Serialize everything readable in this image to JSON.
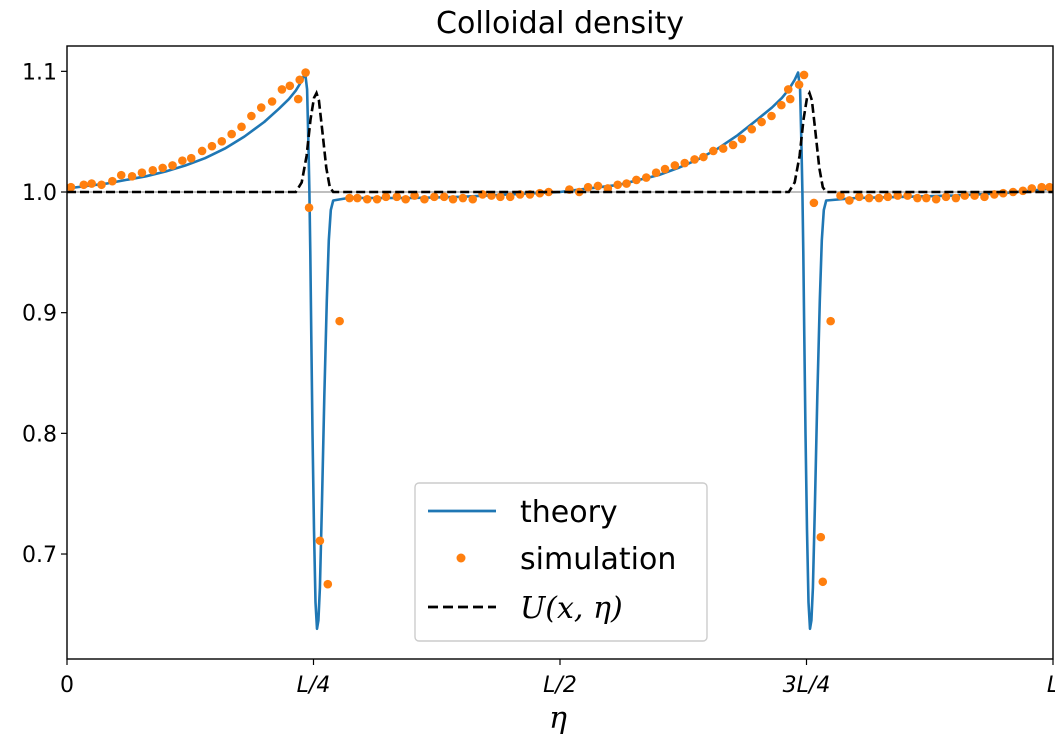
{
  "chart_data": {
    "type": "line",
    "title": "Colloidal density",
    "xlabel": "η",
    "ylabel": "",
    "xlim": [
      0,
      1
    ],
    "ylim": [
      0.613,
      1.121
    ],
    "x_ticks": [
      {
        "value": 0,
        "label": "0"
      },
      {
        "value": 0.25,
        "label": "L/4"
      },
      {
        "value": 0.5,
        "label": "L/2"
      },
      {
        "value": 0.75,
        "label": "3L/4"
      },
      {
        "value": 1.0,
        "label": "L"
      }
    ],
    "y_ticks": [
      {
        "value": 0.7,
        "label": "0.7"
      },
      {
        "value": 0.8,
        "label": "0.8"
      },
      {
        "value": 0.9,
        "label": "0.9"
      },
      {
        "value": 1.0,
        "label": "1.0"
      },
      {
        "value": 1.1,
        "label": "1.1"
      }
    ],
    "reference_line": {
      "y": 1.0,
      "color": "#aaaaaa"
    },
    "grid": false,
    "legend_position": "bottom-center",
    "series": [
      {
        "name": "theory",
        "style": "solid-line",
        "color": "#1f77b4",
        "points": [
          [
            0.0,
            1.003
          ],
          [
            0.02,
            1.005
          ],
          [
            0.04,
            1.007
          ],
          [
            0.06,
            1.01
          ],
          [
            0.08,
            1.013
          ],
          [
            0.1,
            1.017
          ],
          [
            0.12,
            1.022
          ],
          [
            0.14,
            1.028
          ],
          [
            0.16,
            1.036
          ],
          [
            0.18,
            1.046
          ],
          [
            0.2,
            1.058
          ],
          [
            0.215,
            1.069
          ],
          [
            0.225,
            1.077
          ],
          [
            0.232,
            1.084
          ],
          [
            0.238,
            1.092
          ],
          [
            0.2415,
            1.099
          ],
          [
            0.2435,
            1.085
          ],
          [
            0.2448,
            1.04
          ],
          [
            0.2458,
            1.0
          ],
          [
            0.2468,
            0.95
          ],
          [
            0.2478,
            0.88
          ],
          [
            0.249,
            0.8
          ],
          [
            0.2505,
            0.72
          ],
          [
            0.252,
            0.66
          ],
          [
            0.2535,
            0.638
          ],
          [
            0.255,
            0.645
          ],
          [
            0.2565,
            0.672
          ],
          [
            0.2585,
            0.74
          ],
          [
            0.261,
            0.83
          ],
          [
            0.2635,
            0.91
          ],
          [
            0.2655,
            0.96
          ],
          [
            0.2675,
            0.985
          ],
          [
            0.27,
            0.993
          ],
          [
            0.285,
            0.995
          ],
          [
            0.3,
            0.995
          ],
          [
            0.35,
            0.995
          ],
          [
            0.4,
            0.996
          ],
          [
            0.45,
            0.998
          ],
          [
            0.5,
            1.0
          ],
          [
            0.52,
            1.002
          ],
          [
            0.54,
            1.004
          ],
          [
            0.56,
            1.006
          ],
          [
            0.58,
            1.01
          ],
          [
            0.6,
            1.014
          ],
          [
            0.62,
            1.02
          ],
          [
            0.64,
            1.027
          ],
          [
            0.66,
            1.036
          ],
          [
            0.68,
            1.047
          ],
          [
            0.7,
            1.06
          ],
          [
            0.715,
            1.07
          ],
          [
            0.725,
            1.078
          ],
          [
            0.732,
            1.085
          ],
          [
            0.738,
            1.093
          ],
          [
            0.7415,
            1.099
          ],
          [
            0.7435,
            1.085
          ],
          [
            0.7448,
            1.04
          ],
          [
            0.7458,
            1.0
          ],
          [
            0.7468,
            0.95
          ],
          [
            0.7478,
            0.88
          ],
          [
            0.749,
            0.8
          ],
          [
            0.7505,
            0.72
          ],
          [
            0.752,
            0.66
          ],
          [
            0.7535,
            0.638
          ],
          [
            0.755,
            0.645
          ],
          [
            0.7565,
            0.672
          ],
          [
            0.7585,
            0.74
          ],
          [
            0.761,
            0.83
          ],
          [
            0.7635,
            0.91
          ],
          [
            0.7655,
            0.96
          ],
          [
            0.7675,
            0.985
          ],
          [
            0.77,
            0.993
          ],
          [
            0.8,
            0.995
          ],
          [
            0.85,
            0.996
          ],
          [
            0.9,
            0.997
          ],
          [
            0.95,
            0.999
          ],
          [
            1.0,
            1.003
          ]
        ]
      },
      {
        "name": "simulation",
        "style": "markers",
        "color": "#ff7f0e",
        "x": [
          0.004,
          0.017,
          0.025,
          0.035,
          0.046,
          0.055,
          0.066,
          0.076,
          0.087,
          0.097,
          0.107,
          0.117,
          0.126,
          0.137,
          0.147,
          0.157,
          0.167,
          0.177,
          0.187,
          0.197,
          0.208,
          0.218,
          0.226,
          0.236,
          0.242,
          0.2345,
          0.2455,
          0.2565,
          0.2645,
          0.2765,
          0.2865,
          0.2945,
          0.3045,
          0.3145,
          0.3235,
          0.3345,
          0.3435,
          0.3525,
          0.3625,
          0.3725,
          0.3825,
          0.3915,
          0.4015,
          0.4115,
          0.4215,
          0.4305,
          0.4395,
          0.4495,
          0.4595,
          0.4695,
          0.4795,
          0.4885,
          0.5095,
          0.5195,
          0.5285,
          0.5385,
          0.5485,
          0.5585,
          0.5675,
          0.5775,
          0.5875,
          0.5975,
          0.6065,
          0.6165,
          0.6265,
          0.6365,
          0.6455,
          0.6555,
          0.6655,
          0.6755,
          0.6845,
          0.6945,
          0.7045,
          0.7145,
          0.7245,
          0.7335,
          0.7425,
          0.7315,
          0.7475,
          0.7575,
          0.7645,
          0.7665,
          0.7745,
          0.7845,
          0.7935,
          0.8035,
          0.8135,
          0.8235,
          0.8325,
          0.8425,
          0.8525,
          0.8625,
          0.8715,
          0.8815,
          0.8915,
          0.9015,
          0.9105,
          0.9205,
          0.9305,
          0.9405,
          0.9495,
          0.9595,
          0.9695,
          0.9785,
          0.9885,
          0.9965,
          0.9985
        ],
        "y": [
          1.004,
          1.006,
          1.007,
          1.006,
          1.009,
          1.014,
          1.013,
          1.016,
          1.018,
          1.02,
          1.022,
          1.026,
          1.028,
          1.034,
          1.038,
          1.042,
          1.048,
          1.054,
          1.063,
          1.07,
          1.075,
          1.085,
          1.088,
          1.093,
          1.099,
          1.077,
          0.987,
          0.711,
          0.675,
          0.893,
          0.995,
          0.995,
          0.994,
          0.994,
          0.996,
          0.996,
          0.994,
          0.997,
          0.994,
          0.996,
          0.996,
          0.994,
          0.995,
          0.994,
          0.998,
          0.997,
          0.996,
          0.996,
          0.998,
          0.998,
          0.999,
          1.0,
          1.002,
          1.0,
          1.004,
          1.005,
          1.003,
          1.006,
          1.007,
          1.01,
          1.012,
          1.016,
          1.019,
          1.022,
          1.024,
          1.027,
          1.029,
          1.034,
          1.036,
          1.039,
          1.044,
          1.052,
          1.058,
          1.063,
          1.072,
          1.077,
          1.089,
          1.085,
          1.097,
          0.991,
          0.714,
          0.677,
          0.893,
          0.997,
          0.993,
          0.996,
          0.995,
          0.995,
          0.996,
          0.997,
          0.997,
          0.995,
          0.995,
          0.994,
          0.996,
          0.995,
          0.997,
          0.997,
          0.996,
          0.998,
          0.999,
          1.0,
          1.001,
          1.003,
          1.004,
          1.004,
          1.003
        ]
      },
      {
        "name": "U(x, η)",
        "style": "dashed-line",
        "color": "#000000",
        "points": [
          [
            0.0,
            1.0
          ],
          [
            0.232,
            1.0
          ],
          [
            0.238,
            1.008
          ],
          [
            0.243,
            1.03
          ],
          [
            0.247,
            1.06
          ],
          [
            0.2505,
            1.078
          ],
          [
            0.253,
            1.082
          ],
          [
            0.2555,
            1.076
          ],
          [
            0.259,
            1.05
          ],
          [
            0.263,
            1.02
          ],
          [
            0.2665,
            1.004
          ],
          [
            0.27,
            1.0
          ],
          [
            0.732,
            1.0
          ],
          [
            0.738,
            1.008
          ],
          [
            0.743,
            1.03
          ],
          [
            0.747,
            1.06
          ],
          [
            0.7505,
            1.078
          ],
          [
            0.753,
            1.082
          ],
          [
            0.7555,
            1.076
          ],
          [
            0.759,
            1.05
          ],
          [
            0.763,
            1.02
          ],
          [
            0.7665,
            1.004
          ],
          [
            0.77,
            1.0
          ],
          [
            1.0,
            1.0
          ]
        ]
      }
    ]
  }
}
